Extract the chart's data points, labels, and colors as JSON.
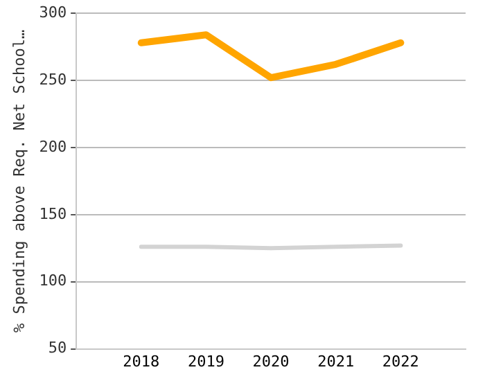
{
  "chart_data": {
    "type": "line",
    "ylabel": "% Spending above Req. Net School…",
    "categories": [
      "2018",
      "2019",
      "2020",
      "2021",
      "2022"
    ],
    "series": [
      {
        "color": "#ffa500",
        "values": [
          278,
          284,
          252,
          262,
          278
        ]
      },
      {
        "color": "#d3d3d3",
        "values": [
          126,
          126,
          125,
          126,
          127
        ]
      }
    ],
    "ylim": [
      50,
      300
    ],
    "yticks": [
      50,
      100,
      150,
      200,
      250,
      300
    ],
    "grid": "y",
    "legend": false,
    "marker": "none",
    "line_style": "solid"
  }
}
